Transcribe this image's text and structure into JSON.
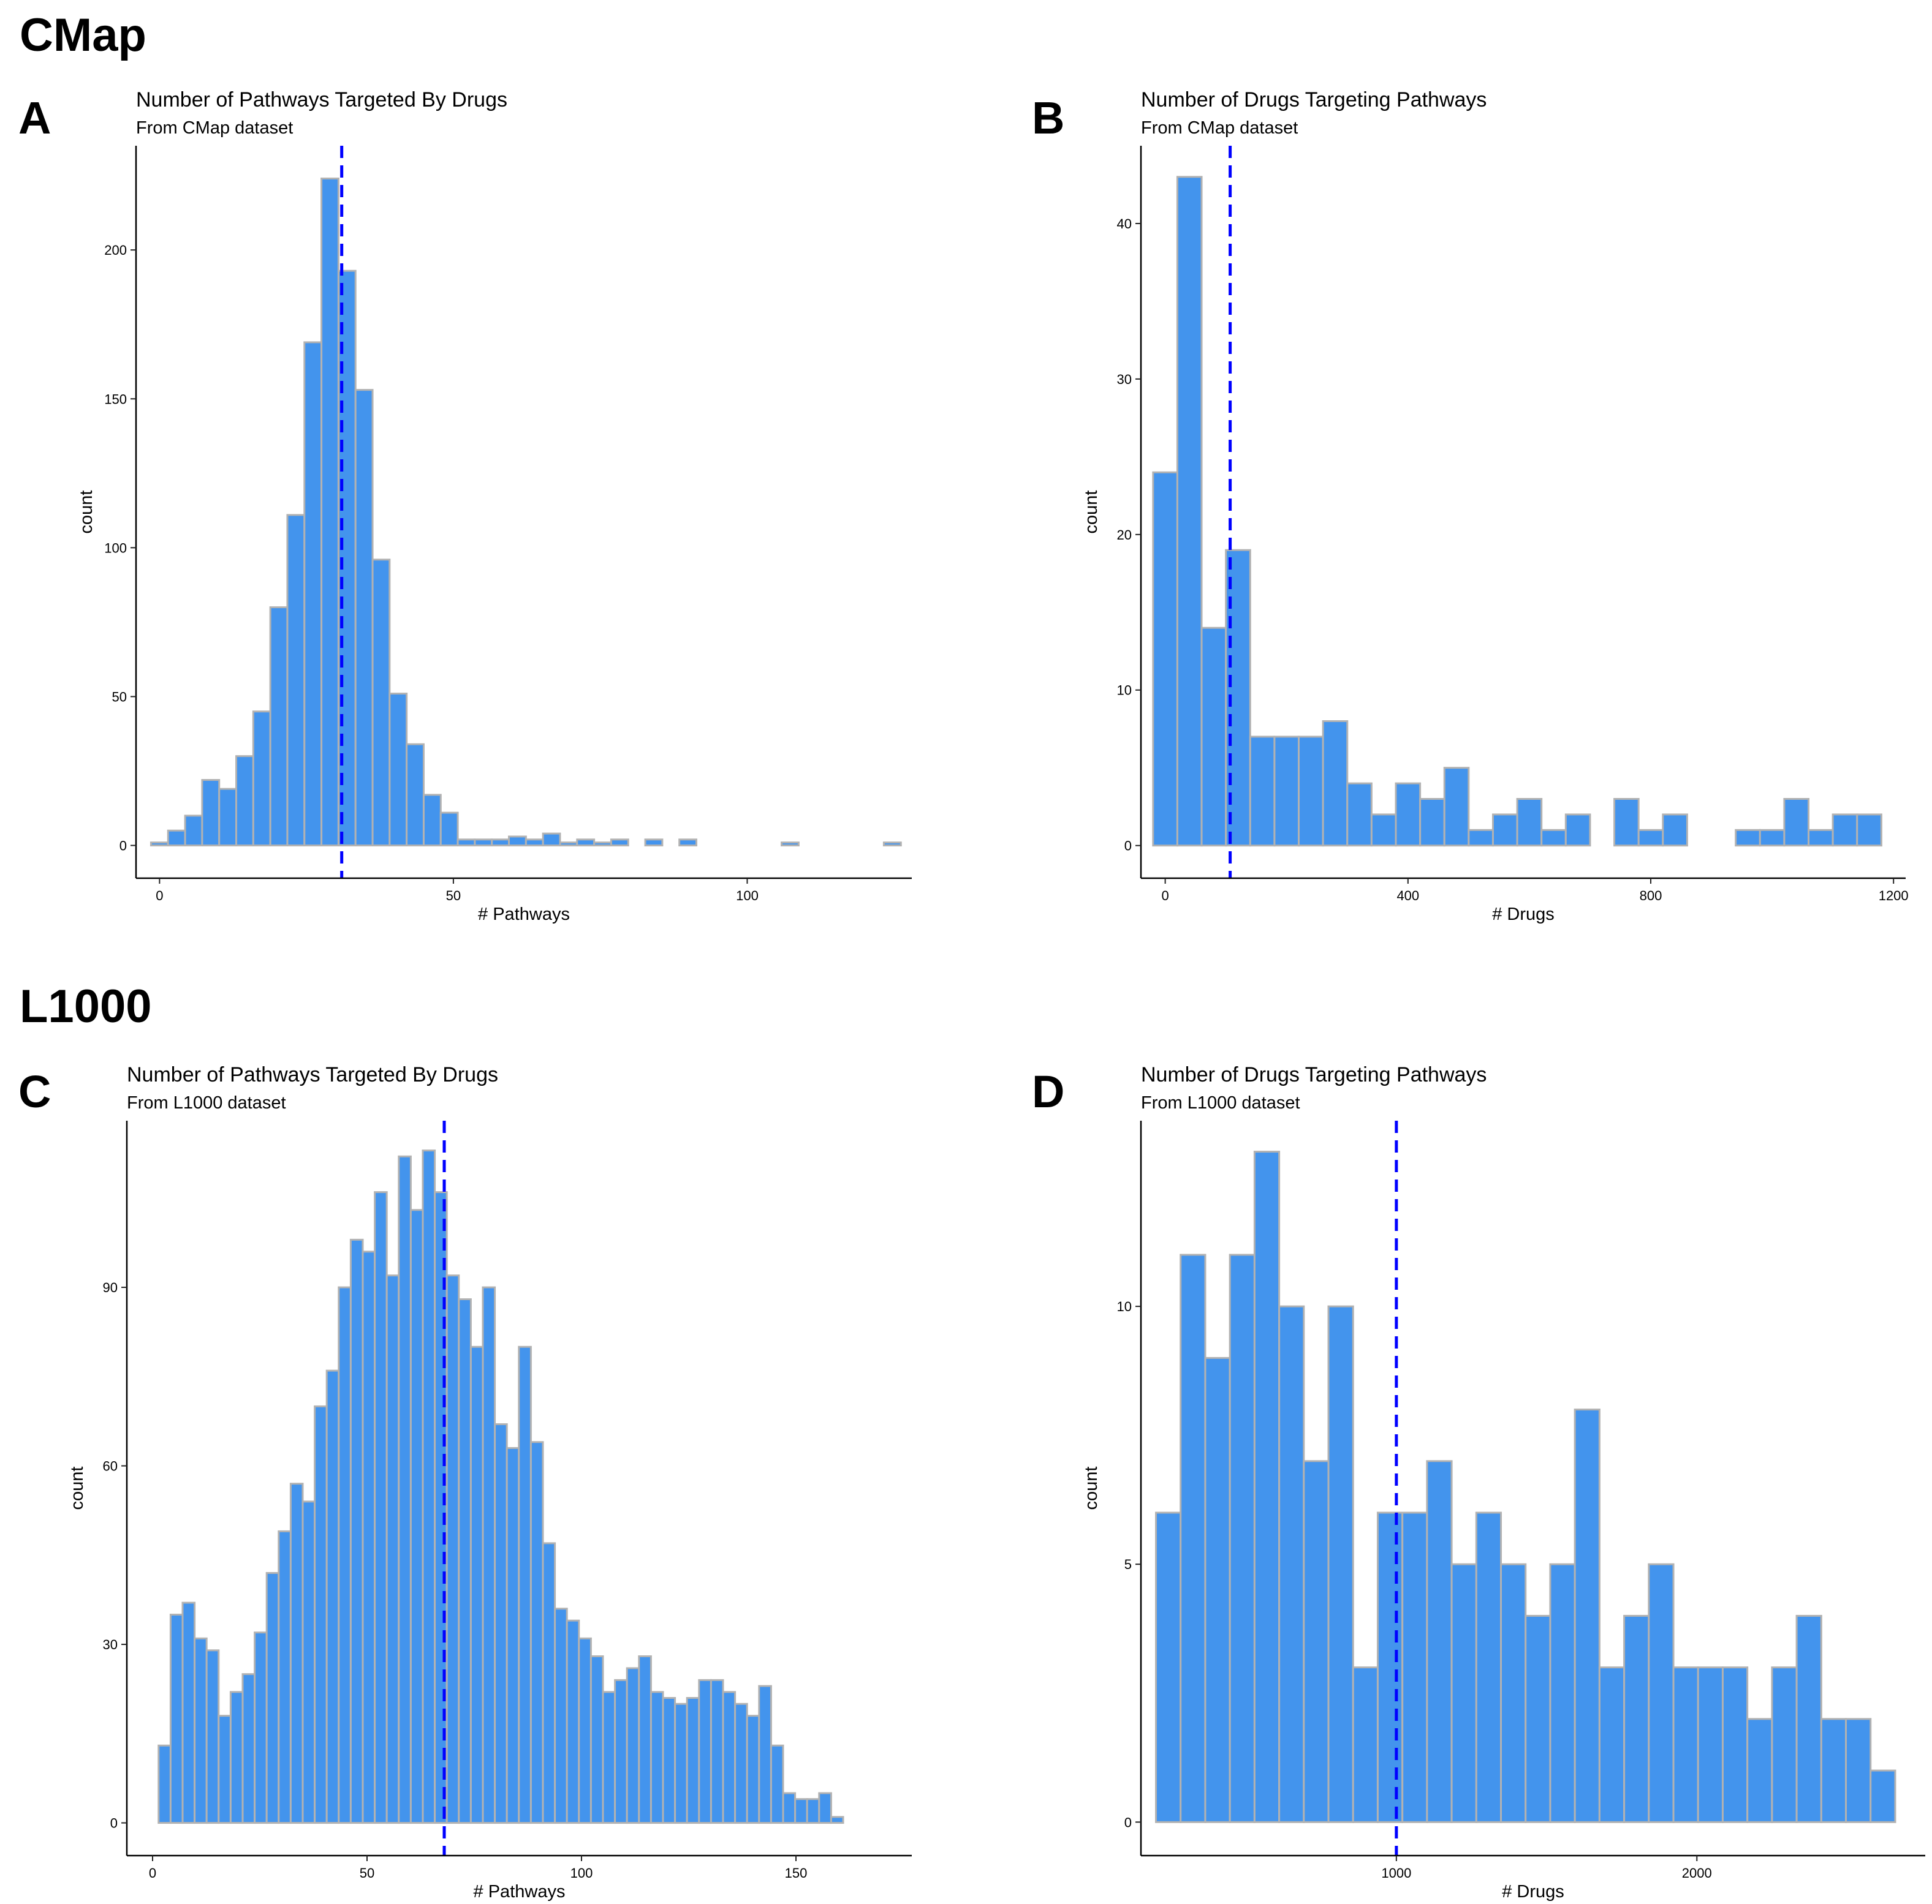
{
  "sections": {
    "cmap": "CMap",
    "l1000": "L1000"
  },
  "chart_data": [
    {
      "id": "A",
      "type": "bar",
      "title": "Number of Pathways Targeted By Drugs",
      "subtitle": "From CMap dataset",
      "xlabel": "# Pathways",
      "ylabel": "count",
      "xlim": [
        -4,
        128
      ],
      "ylim": [
        -11,
        235
      ],
      "xticks": [
        0,
        50,
        100
      ],
      "yticks": [
        0,
        50,
        100,
        150,
        200
      ],
      "binwidth": 2.9,
      "bin_start": -1.45,
      "values": [
        1,
        5,
        10,
        22,
        19,
        30,
        45,
        80,
        111,
        169,
        224,
        193,
        153,
        96,
        51,
        34,
        17,
        11,
        2,
        2,
        2,
        3,
        2,
        4,
        1,
        2,
        1,
        2,
        0,
        2,
        0,
        2,
        0,
        0,
        0,
        0,
        0,
        1,
        0,
        0,
        0,
        0,
        0,
        1
      ],
      "mean": 31
    },
    {
      "id": "B",
      "type": "bar",
      "title": "Number of Drugs Targeting Pathways",
      "subtitle": "From CMap dataset",
      "xlabel": "# Drugs",
      "ylabel": "count",
      "xlim": [
        -40,
        1220
      ],
      "ylim": [
        -2.1,
        45
      ],
      "xticks": [
        0,
        400,
        800,
        1200
      ],
      "yticks": [
        0,
        10,
        20,
        30,
        40
      ],
      "binwidth": 40,
      "bin_start": -20,
      "values": [
        24,
        43,
        14,
        19,
        7,
        7,
        7,
        8,
        4,
        2,
        4,
        3,
        5,
        1,
        2,
        3,
        1,
        2,
        0,
        3,
        1,
        2,
        0,
        0,
        1,
        1,
        3,
        1,
        2,
        2
      ],
      "mean": 107
    },
    {
      "id": "C",
      "type": "bar",
      "title": "Number of Pathways Targeted By Drugs",
      "subtitle": "From L1000 dataset",
      "xlabel": "# Pathways",
      "ylabel": "count",
      "xlim": [
        -6,
        177
      ],
      "ylim": [
        -5.5,
        118
      ],
      "xticks": [
        0,
        50,
        100,
        150
      ],
      "yticks": [
        0,
        30,
        60,
        90
      ],
      "binwidth": 2.8,
      "bin_start": 1.4,
      "values": [
        13,
        35,
        37,
        31,
        29,
        18,
        22,
        25,
        32,
        42,
        49,
        57,
        54,
        70,
        76,
        90,
        98,
        96,
        106,
        92,
        112,
        103,
        113,
        106,
        92,
        88,
        80,
        90,
        67,
        63,
        80,
        64,
        47,
        36,
        34,
        31,
        28,
        22,
        24,
        26,
        28,
        22,
        21,
        20,
        21,
        24,
        24,
        22,
        20,
        18,
        23,
        13,
        5,
        4,
        4,
        5,
        1
      ],
      "mean": 68
    },
    {
      "id": "D",
      "type": "bar",
      "title": "Number of Drugs Targeting Pathways",
      "subtitle": "From L1000 dataset",
      "xlabel": "# Drugs",
      "ylabel": "count",
      "xlim": [
        150,
        2760
      ],
      "ylim": [
        -0.65,
        13.6
      ],
      "xticks": [
        1000,
        2000
      ],
      "yticks": [
        0,
        5,
        10
      ],
      "binwidth": 82,
      "bin_start": 200,
      "values": [
        6,
        11,
        9,
        11,
        13,
        10,
        7,
        10,
        3,
        6,
        6,
        7,
        5,
        6,
        5,
        4,
        5,
        8,
        3,
        4,
        5,
        3,
        3,
        3,
        2,
        3,
        4,
        2,
        2,
        1
      ],
      "mean": 1000
    }
  ]
}
